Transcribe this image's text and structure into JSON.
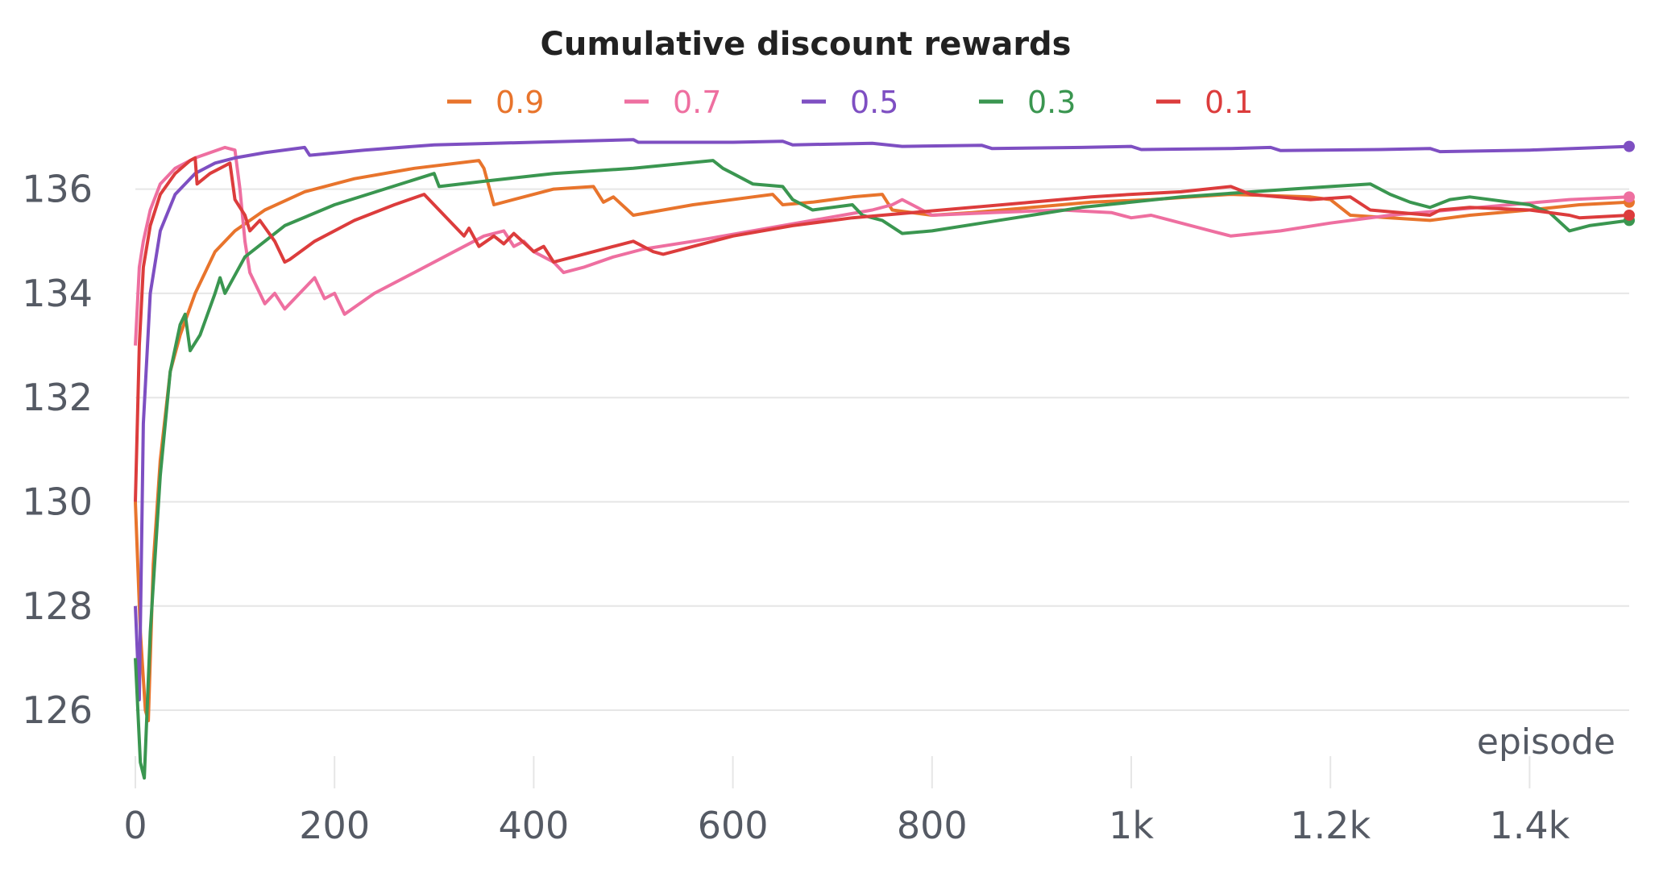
{
  "chart_data": {
    "type": "line",
    "title": "Cumulative discount rewards",
    "xlabel": "episode",
    "ylabel": "",
    "xlim": [
      0,
      1500
    ],
    "ylim": [
      124.5,
      137
    ],
    "grid": true,
    "legend_position": "top",
    "x_ticks": [
      {
        "value": 0,
        "label": "0"
      },
      {
        "value": 200,
        "label": "200"
      },
      {
        "value": 400,
        "label": "400"
      },
      {
        "value": 600,
        "label": "600"
      },
      {
        "value": 800,
        "label": "800"
      },
      {
        "value": 1000,
        "label": "1k"
      },
      {
        "value": 1200,
        "label": "1.2k"
      },
      {
        "value": 1400,
        "label": "1.4k"
      }
    ],
    "y_ticks": [
      {
        "value": 126,
        "label": "126"
      },
      {
        "value": 128,
        "label": "128"
      },
      {
        "value": 130,
        "label": "130"
      },
      {
        "value": 132,
        "label": "132"
      },
      {
        "value": 134,
        "label": "134"
      },
      {
        "value": 136,
        "label": "136"
      }
    ],
    "series": [
      {
        "name": "0.9",
        "color": "#e8742c",
        "end_marker": true,
        "points": [
          [
            0,
            130
          ],
          [
            5,
            127.5
          ],
          [
            10,
            126
          ],
          [
            13,
            125.8
          ],
          [
            18,
            128.8
          ],
          [
            25,
            130.8
          ],
          [
            35,
            132.5
          ],
          [
            45,
            133.2
          ],
          [
            60,
            134
          ],
          [
            80,
            134.8
          ],
          [
            100,
            135.2
          ],
          [
            130,
            135.6
          ],
          [
            170,
            135.95
          ],
          [
            220,
            136.2
          ],
          [
            280,
            136.4
          ],
          [
            345,
            136.55
          ],
          [
            350,
            136.4
          ],
          [
            360,
            135.7
          ],
          [
            420,
            136
          ],
          [
            460,
            136.05
          ],
          [
            470,
            135.75
          ],
          [
            480,
            135.85
          ],
          [
            500,
            135.5
          ],
          [
            560,
            135.7
          ],
          [
            620,
            135.85
          ],
          [
            640,
            135.9
          ],
          [
            650,
            135.7
          ],
          [
            680,
            135.75
          ],
          [
            720,
            135.85
          ],
          [
            750,
            135.9
          ],
          [
            760,
            135.6
          ],
          [
            800,
            135.5
          ],
          [
            840,
            135.55
          ],
          [
            900,
            135.65
          ],
          [
            960,
            135.75
          ],
          [
            1020,
            135.8
          ],
          [
            1060,
            135.85
          ],
          [
            1100,
            135.9
          ],
          [
            1180,
            135.85
          ],
          [
            1200,
            135.8
          ],
          [
            1220,
            135.5
          ],
          [
            1260,
            135.45
          ],
          [
            1300,
            135.4
          ],
          [
            1340,
            135.5
          ],
          [
            1400,
            135.6
          ],
          [
            1450,
            135.7
          ],
          [
            1500,
            135.75
          ]
        ]
      },
      {
        "name": "0.7",
        "color": "#ee6fa0",
        "end_marker": true,
        "points": [
          [
            0,
            133
          ],
          [
            4,
            134.5
          ],
          [
            8,
            135
          ],
          [
            15,
            135.6
          ],
          [
            25,
            136.1
          ],
          [
            40,
            136.4
          ],
          [
            60,
            136.6
          ],
          [
            75,
            136.7
          ],
          [
            90,
            136.8
          ],
          [
            100,
            136.75
          ],
          [
            105,
            136
          ],
          [
            110,
            135
          ],
          [
            115,
            134.4
          ],
          [
            125,
            134
          ],
          [
            130,
            133.8
          ],
          [
            140,
            134
          ],
          [
            150,
            133.7
          ],
          [
            165,
            134
          ],
          [
            180,
            134.3
          ],
          [
            190,
            133.9
          ],
          [
            200,
            134
          ],
          [
            210,
            133.6
          ],
          [
            240,
            134
          ],
          [
            280,
            134.4
          ],
          [
            320,
            134.8
          ],
          [
            350,
            135.1
          ],
          [
            370,
            135.2
          ],
          [
            380,
            134.9
          ],
          [
            390,
            135
          ],
          [
            400,
            134.8
          ],
          [
            420,
            134.6
          ],
          [
            430,
            134.4
          ],
          [
            450,
            134.5
          ],
          [
            480,
            134.7
          ],
          [
            510,
            134.85
          ],
          [
            560,
            135
          ],
          [
            620,
            135.2
          ],
          [
            680,
            135.4
          ],
          [
            740,
            135.6
          ],
          [
            760,
            135.7
          ],
          [
            770,
            135.8
          ],
          [
            780,
            135.7
          ],
          [
            800,
            135.5
          ],
          [
            860,
            135.55
          ],
          [
            930,
            135.6
          ],
          [
            980,
            135.55
          ],
          [
            1000,
            135.45
          ],
          [
            1020,
            135.5
          ],
          [
            1040,
            135.4
          ],
          [
            1080,
            135.2
          ],
          [
            1100,
            135.1
          ],
          [
            1150,
            135.2
          ],
          [
            1200,
            135.35
          ],
          [
            1260,
            135.5
          ],
          [
            1320,
            135.6
          ],
          [
            1380,
            135.7
          ],
          [
            1440,
            135.8
          ],
          [
            1500,
            135.85
          ]
        ]
      },
      {
        "name": "0.5",
        "color": "#7e4fc2",
        "end_marker": true,
        "points": [
          [
            0,
            128
          ],
          [
            4,
            126.2
          ],
          [
            8,
            131.5
          ],
          [
            15,
            134
          ],
          [
            25,
            135.2
          ],
          [
            40,
            135.9
          ],
          [
            60,
            136.3
          ],
          [
            80,
            136.5
          ],
          [
            100,
            136.6
          ],
          [
            130,
            136.7
          ],
          [
            170,
            136.8
          ],
          [
            175,
            136.65
          ],
          [
            230,
            136.75
          ],
          [
            300,
            136.85
          ],
          [
            400,
            136.9
          ],
          [
            500,
            136.95
          ],
          [
            505,
            136.9
          ],
          [
            600,
            136.9
          ],
          [
            650,
            136.92
          ],
          [
            660,
            136.85
          ],
          [
            740,
            136.88
          ],
          [
            770,
            136.82
          ],
          [
            850,
            136.84
          ],
          [
            860,
            136.78
          ],
          [
            950,
            136.8
          ],
          [
            1000,
            136.82
          ],
          [
            1010,
            136.76
          ],
          [
            1100,
            136.78
          ],
          [
            1140,
            136.8
          ],
          [
            1150,
            136.74
          ],
          [
            1250,
            136.76
          ],
          [
            1300,
            136.78
          ],
          [
            1310,
            136.72
          ],
          [
            1400,
            136.75
          ],
          [
            1500,
            136.82
          ]
        ]
      },
      {
        "name": "0.3",
        "color": "#3a9650",
        "end_marker": true,
        "points": [
          [
            0,
            127
          ],
          [
            5,
            125
          ],
          [
            9,
            124.7
          ],
          [
            15,
            127.5
          ],
          [
            25,
            130.5
          ],
          [
            35,
            132.5
          ],
          [
            45,
            133.4
          ],
          [
            50,
            133.6
          ],
          [
            55,
            132.9
          ],
          [
            65,
            133.2
          ],
          [
            80,
            134
          ],
          [
            85,
            134.3
          ],
          [
            90,
            134.0
          ],
          [
            110,
            134.7
          ],
          [
            150,
            135.3
          ],
          [
            200,
            135.7
          ],
          [
            250,
            136
          ],
          [
            300,
            136.3
          ],
          [
            305,
            136.05
          ],
          [
            350,
            136.15
          ],
          [
            420,
            136.3
          ],
          [
            500,
            136.4
          ],
          [
            580,
            136.55
          ],
          [
            590,
            136.4
          ],
          [
            600,
            136.3
          ],
          [
            620,
            136.1
          ],
          [
            650,
            136.05
          ],
          [
            660,
            135.8
          ],
          [
            680,
            135.6
          ],
          [
            720,
            135.7
          ],
          [
            730,
            135.5
          ],
          [
            750,
            135.4
          ],
          [
            770,
            135.15
          ],
          [
            800,
            135.2
          ],
          [
            850,
            135.35
          ],
          [
            900,
            135.5
          ],
          [
            950,
            135.65
          ],
          [
            1000,
            135.75
          ],
          [
            1050,
            135.85
          ],
          [
            1100,
            135.92
          ],
          [
            1160,
            136
          ],
          [
            1200,
            136.05
          ],
          [
            1240,
            136.1
          ],
          [
            1260,
            135.9
          ],
          [
            1280,
            135.75
          ],
          [
            1300,
            135.65
          ],
          [
            1320,
            135.8
          ],
          [
            1340,
            135.85
          ],
          [
            1400,
            135.7
          ],
          [
            1420,
            135.55
          ],
          [
            1440,
            135.2
          ],
          [
            1460,
            135.3
          ],
          [
            1500,
            135.4
          ]
        ]
      },
      {
        "name": "0.1",
        "color": "#dc3c3c",
        "end_marker": true,
        "points": [
          [
            0,
            130
          ],
          [
            4,
            133
          ],
          [
            8,
            134.5
          ],
          [
            15,
            135.3
          ],
          [
            25,
            135.9
          ],
          [
            40,
            136.3
          ],
          [
            55,
            136.55
          ],
          [
            60,
            136.6
          ],
          [
            62,
            136.1
          ],
          [
            75,
            136.3
          ],
          [
            90,
            136.45
          ],
          [
            95,
            136.5
          ],
          [
            100,
            135.8
          ],
          [
            110,
            135.5
          ],
          [
            115,
            135.2
          ],
          [
            125,
            135.4
          ],
          [
            140,
            135.0
          ],
          [
            150,
            134.6
          ],
          [
            155,
            134.65
          ],
          [
            180,
            135
          ],
          [
            220,
            135.4
          ],
          [
            260,
            135.7
          ],
          [
            290,
            135.9
          ],
          [
            310,
            135.5
          ],
          [
            330,
            135.1
          ],
          [
            335,
            135.25
          ],
          [
            345,
            134.9
          ],
          [
            360,
            135.1
          ],
          [
            370,
            134.95
          ],
          [
            380,
            135.15
          ],
          [
            400,
            134.8
          ],
          [
            410,
            134.9
          ],
          [
            420,
            134.6
          ],
          [
            440,
            134.7
          ],
          [
            460,
            134.8
          ],
          [
            480,
            134.9
          ],
          [
            500,
            135
          ],
          [
            520,
            134.8
          ],
          [
            530,
            134.75
          ],
          [
            560,
            134.9
          ],
          [
            600,
            135.1
          ],
          [
            660,
            135.3
          ],
          [
            720,
            135.45
          ],
          [
            780,
            135.55
          ],
          [
            840,
            135.65
          ],
          [
            900,
            135.75
          ],
          [
            960,
            135.85
          ],
          [
            1000,
            135.9
          ],
          [
            1050,
            135.95
          ],
          [
            1100,
            136.05
          ],
          [
            1120,
            135.9
          ],
          [
            1180,
            135.8
          ],
          [
            1220,
            135.85
          ],
          [
            1240,
            135.6
          ],
          [
            1300,
            135.5
          ],
          [
            1310,
            135.6
          ],
          [
            1340,
            135.65
          ],
          [
            1400,
            135.6
          ],
          [
            1440,
            135.5
          ],
          [
            1450,
            135.45
          ],
          [
            1500,
            135.5
          ]
        ]
      }
    ]
  }
}
